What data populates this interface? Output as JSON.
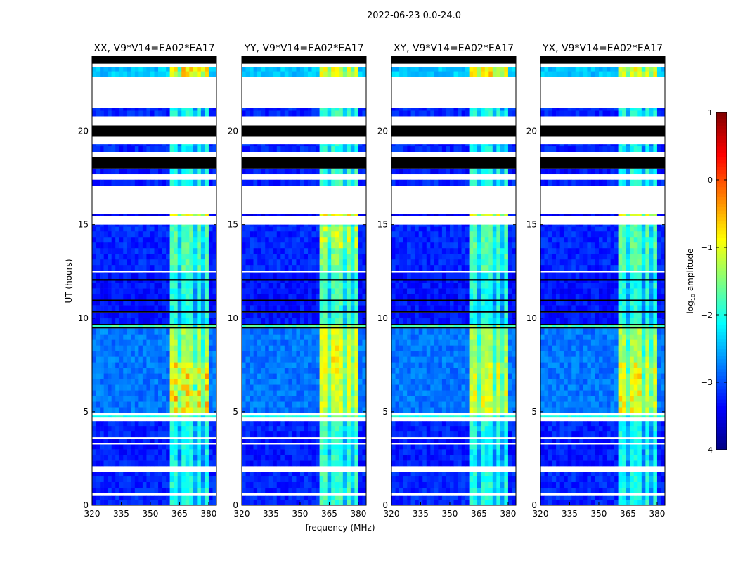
{
  "chart_data": {
    "type": "heatmap",
    "title": "2022-06-23 0.0-24.0",
    "xlabel": "frequency (MHz)",
    "ylabel": "UT (hours)",
    "xlim": [
      320,
      384
    ],
    "ylim": [
      0,
      24
    ],
    "xticks": [
      320,
      335,
      350,
      365,
      380
    ],
    "yticks": [
      0,
      5,
      10,
      15,
      20
    ],
    "panels": [
      {
        "title": "XX, V9*V14=EA02*EA17",
        "boost": 0.0,
        "hot": [
          [
            5.0,
            7.6,
            0.9
          ],
          [
            22.95,
            23.35,
            1.0
          ]
        ]
      },
      {
        "title": "YY, V9*V14=EA02*EA17",
        "boost": 0.2,
        "hot": [
          [
            13.8,
            15.0,
            0.6
          ],
          [
            7.0,
            9.3,
            0.3
          ]
        ]
      },
      {
        "title": "XY, V9*V14=EA02*EA17",
        "boost": 0.0,
        "hot": [
          [
            5.0,
            7.6,
            0.4
          ],
          [
            22.95,
            23.35,
            0.7
          ]
        ]
      },
      {
        "title": "YX, V9*V14=EA02*EA17",
        "boost": 0.0,
        "hot": [
          [
            5.0,
            7.6,
            0.6
          ],
          [
            22.95,
            23.35,
            0.5
          ]
        ]
      }
    ],
    "rfi_band_mhz": [
      360.5,
      380
    ],
    "rfi_gaps_mhz": [
      [
        364.5,
        365.5
      ],
      [
        369.5,
        370.5
      ],
      [
        372.5,
        373.5
      ],
      [
        376.5,
        377.5
      ]
    ],
    "segments": [
      {
        "t": [
          0.0,
          0.5
        ],
        "kind": "data",
        "base": -3.2,
        "band": -2.0
      },
      {
        "t": [
          0.5,
          0.65
        ],
        "kind": "flag"
      },
      {
        "t": [
          0.65,
          1.8
        ],
        "kind": "data",
        "base": -3.2,
        "band": -2.0
      },
      {
        "t": [
          1.8,
          2.1
        ],
        "kind": "flag"
      },
      {
        "t": [
          2.1,
          3.25
        ],
        "kind": "data",
        "base": -3.25,
        "band": -2.1
      },
      {
        "t": [
          3.25,
          3.35
        ],
        "kind": "flag"
      },
      {
        "t": [
          3.35,
          3.55
        ],
        "kind": "data",
        "base": -3.3,
        "band": -2.1
      },
      {
        "t": [
          3.55,
          3.65
        ],
        "kind": "flag"
      },
      {
        "t": [
          3.65,
          4.5
        ],
        "kind": "data",
        "base": -3.2,
        "band": -2.0
      },
      {
        "t": [
          4.5,
          4.7
        ],
        "kind": "flag"
      },
      {
        "t": [
          4.7,
          4.8
        ],
        "kind": "data",
        "base": -2.0,
        "band": -1.6
      },
      {
        "t": [
          4.8,
          4.95
        ],
        "kind": "flag"
      },
      {
        "t": [
          4.95,
          9.45
        ],
        "kind": "data",
        "base": -2.8,
        "band": -1.3
      },
      {
        "t": [
          9.45,
          9.55
        ],
        "kind": "black"
      },
      {
        "t": [
          9.55,
          9.65
        ],
        "kind": "data",
        "base": -1.8,
        "band": -1.5
      },
      {
        "t": [
          9.65,
          9.7
        ],
        "kind": "black"
      },
      {
        "t": [
          9.7,
          10.3
        ],
        "kind": "data",
        "base": -3.3,
        "band": -2.0
      },
      {
        "t": [
          10.3,
          10.4
        ],
        "kind": "black"
      },
      {
        "t": [
          10.4,
          10.9
        ],
        "kind": "data",
        "base": -3.3,
        "band": -2.0
      },
      {
        "t": [
          10.9,
          11.0
        ],
        "kind": "black"
      },
      {
        "t": [
          11.0,
          12.0
        ],
        "kind": "data",
        "base": -3.3,
        "band": -2.0
      },
      {
        "t": [
          12.0,
          12.1
        ],
        "kind": "black"
      },
      {
        "t": [
          12.1,
          12.45
        ],
        "kind": "data",
        "base": -3.3,
        "band": -2.0
      },
      {
        "t": [
          12.45,
          12.55
        ],
        "kind": "flag"
      },
      {
        "t": [
          12.55,
          14.9
        ],
        "kind": "data",
        "base": -3.2,
        "band": -1.7
      },
      {
        "t": [
          14.9,
          15.0
        ],
        "kind": "data",
        "base": -3.2,
        "band": -1.7
      },
      {
        "t": [
          15.0,
          15.45
        ],
        "kind": "flag"
      },
      {
        "t": [
          15.45,
          15.55
        ],
        "kind": "data",
        "base": -3.4,
        "band": -1.0
      },
      {
        "t": [
          15.55,
          17.1
        ],
        "kind": "flag"
      },
      {
        "t": [
          17.1,
          17.4
        ],
        "kind": "data",
        "base": -3.2,
        "band": -2.0
      },
      {
        "t": [
          17.4,
          17.7
        ],
        "kind": "flag"
      },
      {
        "t": [
          17.7,
          18.0
        ],
        "kind": "data",
        "base": -3.3,
        "band": -2.0
      },
      {
        "t": [
          18.0,
          18.6
        ],
        "kind": "black"
      },
      {
        "t": [
          18.6,
          18.9
        ],
        "kind": "flag"
      },
      {
        "t": [
          18.9,
          19.3
        ],
        "kind": "data",
        "base": -3.2,
        "band": -2.1
      },
      {
        "t": [
          19.3,
          19.7
        ],
        "kind": "flag"
      },
      {
        "t": [
          19.7,
          20.3
        ],
        "kind": "black"
      },
      {
        "t": [
          20.3,
          20.8
        ],
        "kind": "flag"
      },
      {
        "t": [
          20.8,
          21.25
        ],
        "kind": "data",
        "base": -3.2,
        "band": -2.0
      },
      {
        "t": [
          21.25,
          22.9
        ],
        "kind": "flag"
      },
      {
        "t": [
          22.9,
          23.4
        ],
        "kind": "data",
        "base": -2.4,
        "band": -1.2
      },
      {
        "t": [
          23.4,
          23.6
        ],
        "kind": "flag"
      },
      {
        "t": [
          23.6,
          24.0
        ],
        "kind": "black"
      }
    ],
    "colorbar": {
      "label": "log10 amplitude",
      "range": [
        -4,
        1
      ],
      "ticks": [
        1,
        0,
        -1,
        -2,
        -3,
        -4
      ],
      "colormap": "jet"
    }
  }
}
